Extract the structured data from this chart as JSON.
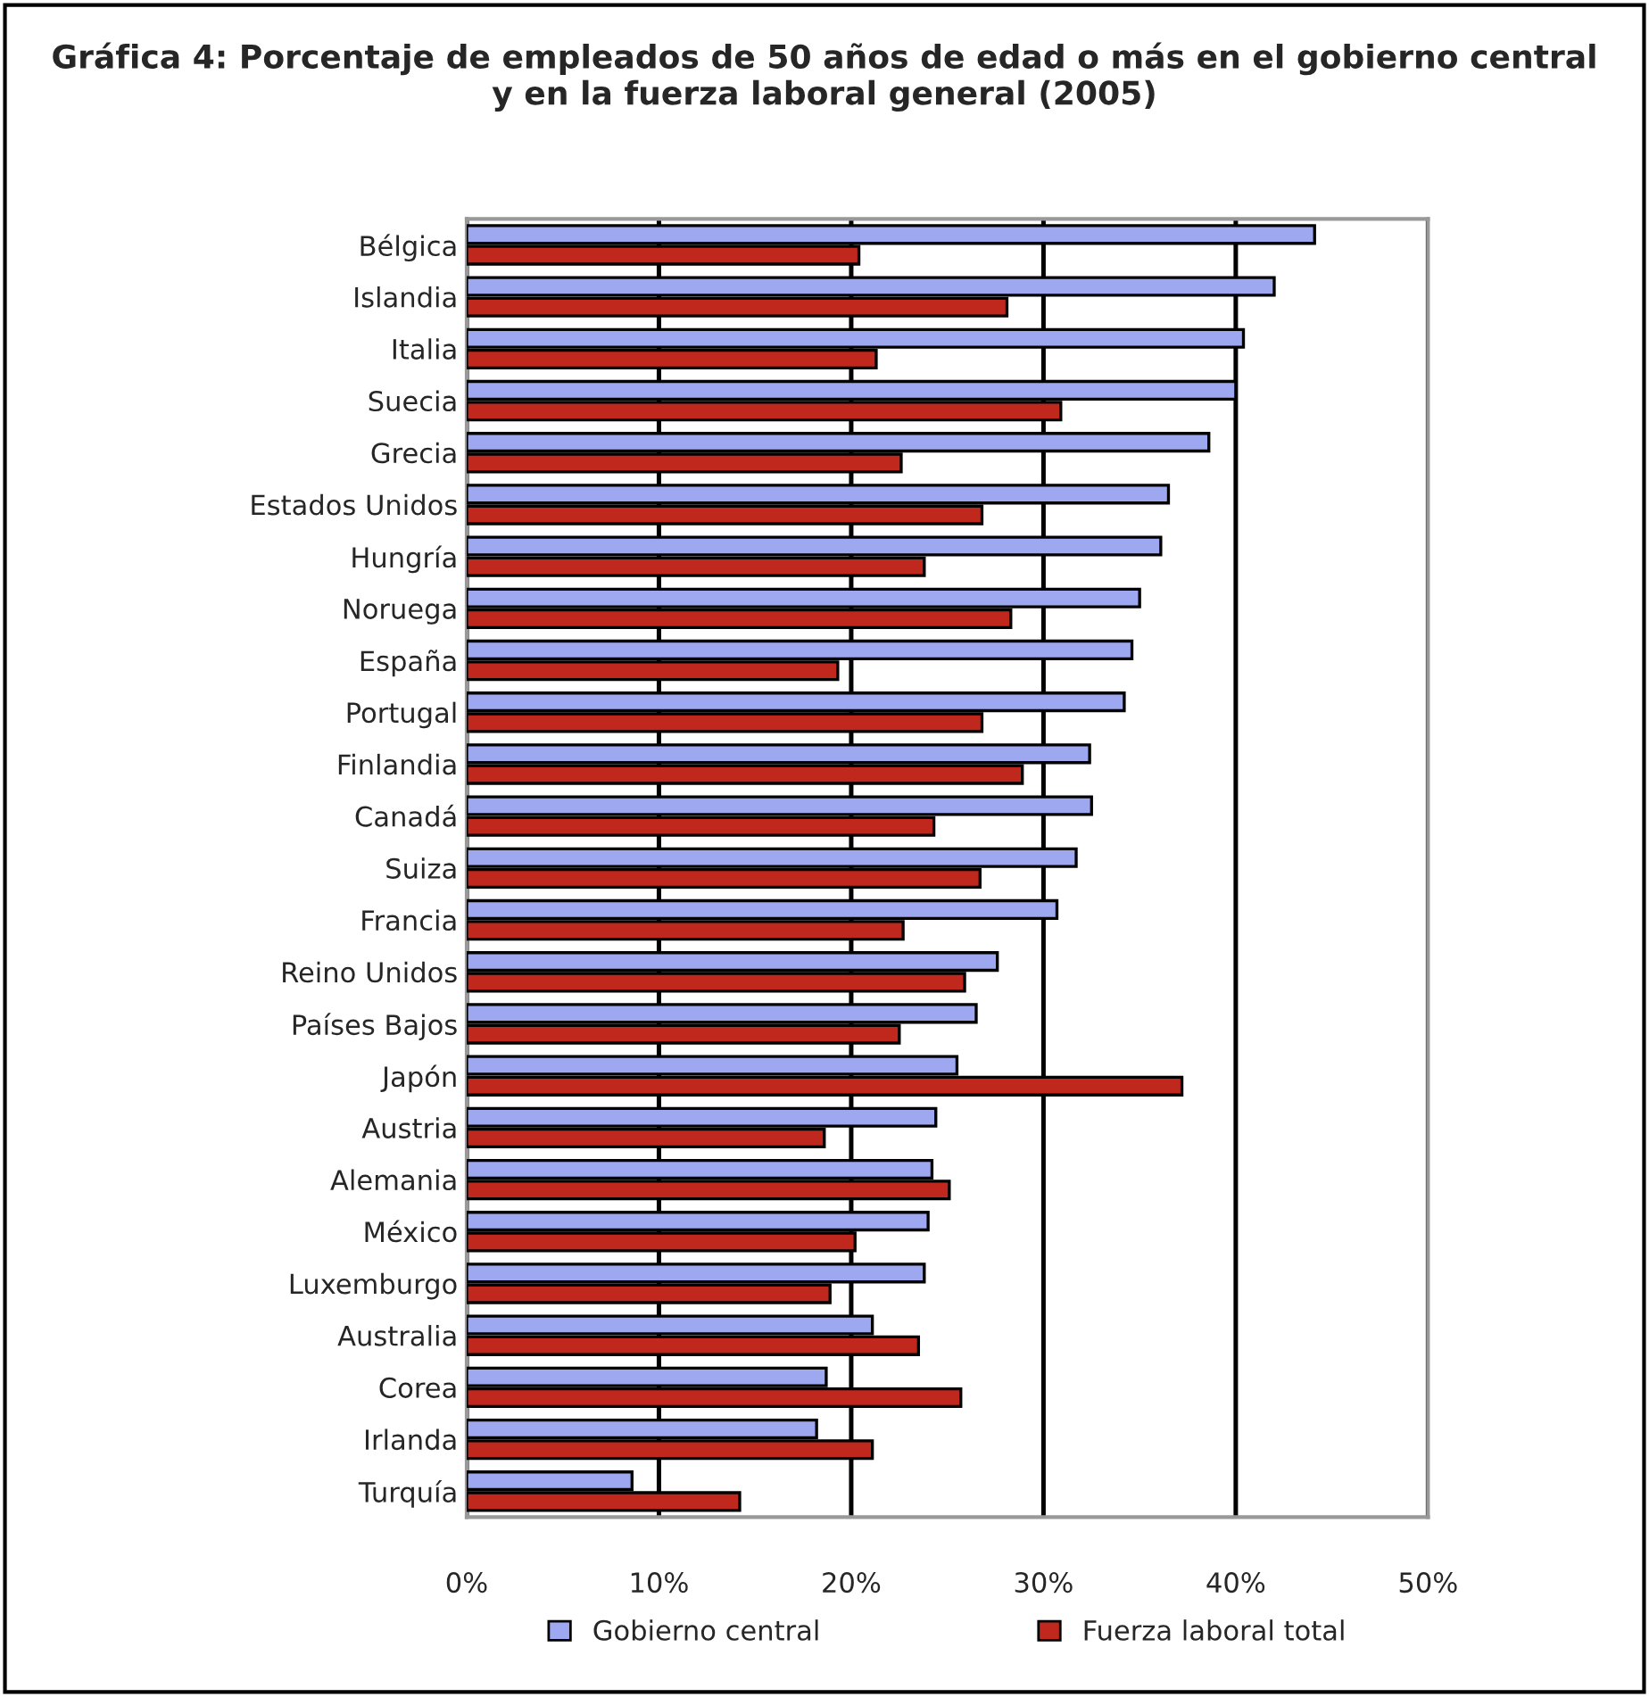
{
  "chart_data": {
    "type": "bar",
    "orientation": "horizontal",
    "title": "Gráfica 4: Porcentaje de empleados de 50 años de edad o más en el gobierno central\ny en la fuerza laboral general (2005)",
    "categories": [
      "Bélgica",
      "Islandia",
      "Italia",
      "Suecia",
      "Grecia",
      "Estados Unidos",
      "Hungría",
      "Noruega",
      "España",
      "Portugal",
      "Finlandia",
      "Canadá",
      "Suiza",
      "Francia",
      "Reino Unidos",
      "Países Bajos",
      "Japón",
      "Austria",
      "Alemania",
      "México",
      "Luxemburgo",
      "Australia",
      "Corea",
      "Irlanda",
      "Turquía"
    ],
    "series": [
      {
        "name": "Gobierno central",
        "color": "#9ea8f0",
        "values": [
          44.1,
          42.0,
          40.4,
          40.0,
          38.6,
          36.5,
          36.1,
          35.0,
          34.6,
          34.2,
          32.4,
          32.5,
          31.7,
          30.7,
          27.6,
          26.5,
          25.5,
          24.4,
          24.2,
          24.0,
          23.8,
          21.1,
          18.7,
          18.2,
          8.6
        ]
      },
      {
        "name": "Fuerza laboral total",
        "color": "#c0281e",
        "values": [
          20.4,
          28.1,
          21.3,
          30.9,
          22.6,
          26.8,
          23.8,
          28.3,
          19.3,
          26.8,
          28.9,
          24.3,
          26.7,
          22.7,
          25.9,
          22.5,
          37.2,
          18.6,
          25.1,
          20.2,
          18.9,
          23.5,
          25.7,
          21.1,
          14.2
        ]
      }
    ],
    "xlim": [
      0,
      50
    ],
    "xticks": [
      {
        "value": 0,
        "label": "0%"
      },
      {
        "value": 10,
        "label": "10%"
      },
      {
        "value": 20,
        "label": "20%"
      },
      {
        "value": 30,
        "label": "30%"
      },
      {
        "value": 40,
        "label": "40%"
      },
      {
        "value": 50,
        "label": "50%"
      }
    ],
    "grid": "x",
    "legend": "bottom"
  }
}
